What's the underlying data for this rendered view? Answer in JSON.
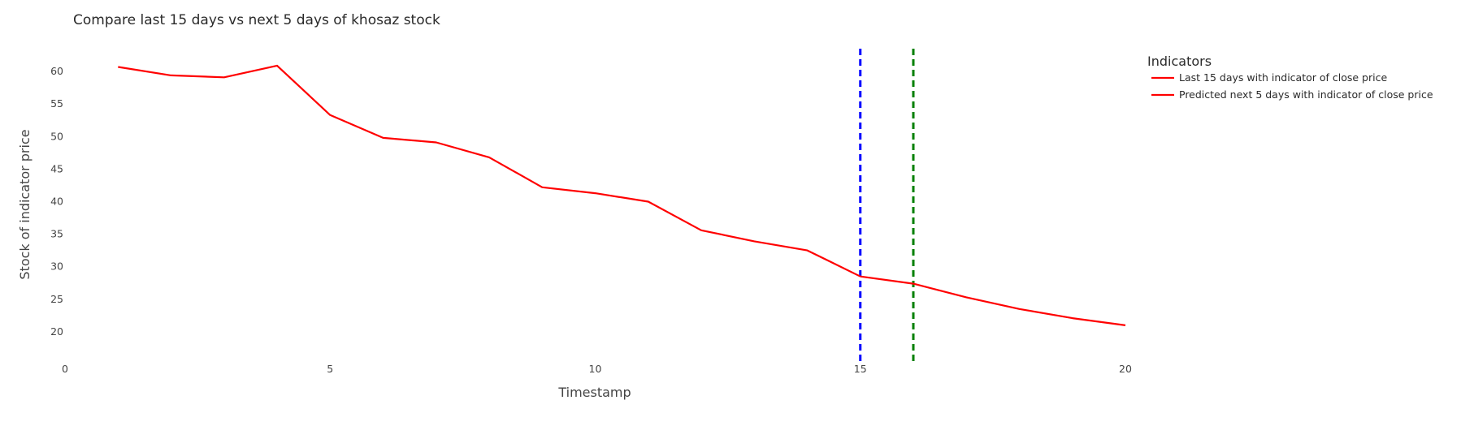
{
  "chart_data": {
    "type": "line",
    "title": "Compare last 15 days vs next 5 days of khosaz stock",
    "xlabel": "Timestamp",
    "ylabel": "Stock of indicator price",
    "xlim": [
      0,
      20
    ],
    "ylim": [
      15.5,
      63.5
    ],
    "x_ticks": [
      0,
      5,
      10,
      15,
      20
    ],
    "y_ticks": [
      20,
      25,
      30,
      35,
      40,
      45,
      50,
      55,
      60
    ],
    "grid": false,
    "legend_title": "Indicators",
    "legend_position": "top-right",
    "series": [
      {
        "name": "Last 15 days with indicator of close price",
        "color": "#ff0000",
        "x": [
          1,
          2,
          3,
          4,
          5,
          6,
          7,
          8,
          9,
          10,
          11,
          12,
          13,
          14,
          15
        ],
        "values": [
          60.7,
          59.4,
          59.1,
          60.9,
          53.3,
          49.8,
          49.1,
          46.8,
          42.2,
          41.3,
          40.0,
          35.6,
          33.9,
          32.5,
          28.5
        ]
      },
      {
        "name": "Predicted next 5 days with indicator of close price",
        "color": "#ff0000",
        "x": [
          15,
          16,
          17,
          18,
          19,
          20
        ],
        "values": [
          28.5,
          27.4,
          25.3,
          23.5,
          22.1,
          21.0
        ]
      }
    ],
    "vlines": [
      {
        "x": 15,
        "color": "#0000ff",
        "style": "dashed"
      },
      {
        "x": 16,
        "color": "#008000",
        "style": "dashed"
      }
    ]
  }
}
